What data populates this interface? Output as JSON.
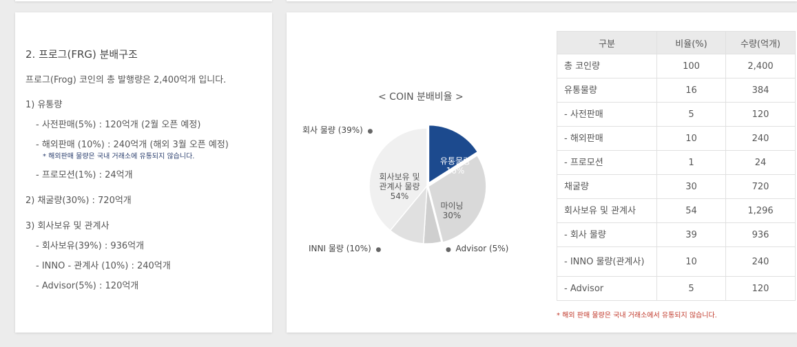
{
  "distribution": {
    "section_title": "2. 프로그(FRG) 분배구조",
    "intro": "프로그(Frog) 코인의 총 발행량은 2,400억개 입니다.",
    "group1_title": "1) 유통량",
    "group1_items": [
      "- 사전판매(5%) : 120억개 (2월 오픈 예정)",
      "- 해외판매 (10%) : 240억개 (해외 3월 오픈 예정)"
    ],
    "group1_note": "* 해외판매 물량은 국내 거래소에 유통되지 않습니다.",
    "group1_last": "- 프로모션(1%) : 24억개",
    "group2_title": "2) 채굴량(30%) : 720억개",
    "group3_title": "3) 회사보유 및 관계사",
    "group3_items": [
      "- 회사보유(39%) : 936억개",
      "- INNO - 관계사 (10%) : 240억개",
      "- Advisor(5%) : 120억개"
    ]
  },
  "chart_data": {
    "type": "pie",
    "title": "< COIN 분배비율 >",
    "slices": [
      {
        "name": "유통물량",
        "value": 16,
        "label": "유통물량\n16%",
        "color": "#1c4a8e",
        "text_color": "#ffffff"
      },
      {
        "name": "마이닝",
        "value": 30,
        "label": "마이닝\n30%",
        "color": "#d9d9d9",
        "text_color": "#555555"
      },
      {
        "name": "Advisor",
        "value": 5,
        "label": "Advisor (5%)",
        "color": "#cfcfcf",
        "text_color": "#444444"
      },
      {
        "name": "INNI 물량",
        "value": 10,
        "label": "INNI 물량 (10%)",
        "color": "#e0e0e0",
        "text_color": "#444444"
      },
      {
        "name": "회사 물량",
        "value": 39,
        "label": "회사 물량 (39%)",
        "color": "#f0f0f0",
        "text_color": "#444444"
      }
    ],
    "group_label": "회사보유 및\n관계사 물량\n54%"
  },
  "table": {
    "headers": [
      "구분",
      "비율(%)",
      "수량(억개)"
    ],
    "rows": [
      {
        "name": "총 코인량",
        "ratio": "100",
        "amount": "2,400"
      },
      {
        "name": "유통물량",
        "ratio": "16",
        "amount": "384"
      },
      {
        "name": " - 사전판매",
        "ratio": "5",
        "amount": "120"
      },
      {
        "name": " - 해외판매",
        "ratio": "10",
        "amount": "240"
      },
      {
        "name": " - 프로모션",
        "ratio": "1",
        "amount": "24"
      },
      {
        "name": "채굴량",
        "ratio": "30",
        "amount": "720"
      },
      {
        "name": "회사보유 및 관계사",
        "ratio": "54",
        "amount": "1,296"
      },
      {
        "name": " - 회사 물량",
        "ratio": "39",
        "amount": "936"
      },
      {
        "name": " - INNO 물량(관계사)",
        "ratio": "10",
        "amount": "240"
      },
      {
        "name": " - Advisor",
        "ratio": "5",
        "amount": "120"
      }
    ],
    "note": "* 해외 판매 물량은 국내 거래소에서 유통되지 않습니다."
  }
}
